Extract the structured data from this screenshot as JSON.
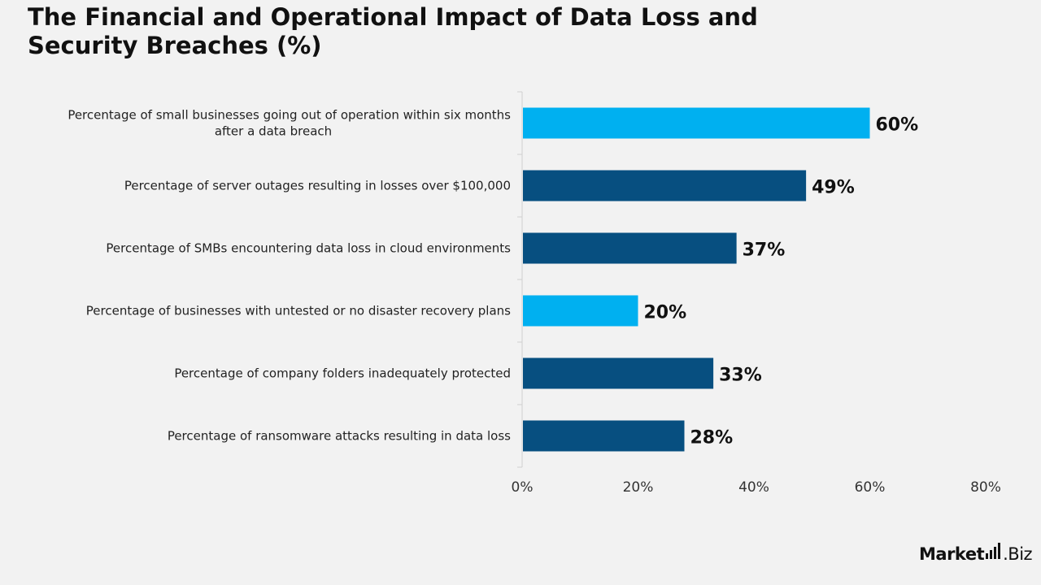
{
  "title": "The Financial and Operational Impact of Data Loss and Security Breaches (%)",
  "brand": {
    "name_bold": "Market",
    "name_rest": ".Biz"
  },
  "colors": {
    "highlight": "#00b0f0",
    "primary": "#074f80",
    "axis": "#d0d0d0",
    "text": "#111111"
  },
  "chart_data": {
    "type": "bar",
    "orientation": "horizontal",
    "title": "The Financial and Operational Impact of Data Loss and Security Breaches (%)",
    "categories": [
      [
        "Percentage of small businesses going out of operation within six months",
        "after a data breach"
      ],
      [
        "Percentage of server outages resulting in losses over $100,000"
      ],
      [
        "Percentage of SMBs encountering data loss in cloud environments"
      ],
      [
        "Percentage of businesses with untested or no disaster recovery plans"
      ],
      [
        "Percentage of company folders inadequately protected"
      ],
      [
        "Percentage of ransomware attacks resulting in data loss"
      ]
    ],
    "values": [
      60,
      49,
      37,
      20,
      33,
      28
    ],
    "value_labels": [
      "60%",
      "49%",
      "37%",
      "20%",
      "33%",
      "28%"
    ],
    "bar_colors": [
      "highlight",
      "primary",
      "primary",
      "highlight",
      "primary",
      "primary"
    ],
    "xlim": [
      0,
      80
    ],
    "xticks": [
      0,
      20,
      40,
      60,
      80
    ],
    "xtick_labels": [
      "0%",
      "20%",
      "40%",
      "60%",
      "80%"
    ],
    "grid": false,
    "legend": "none"
  }
}
